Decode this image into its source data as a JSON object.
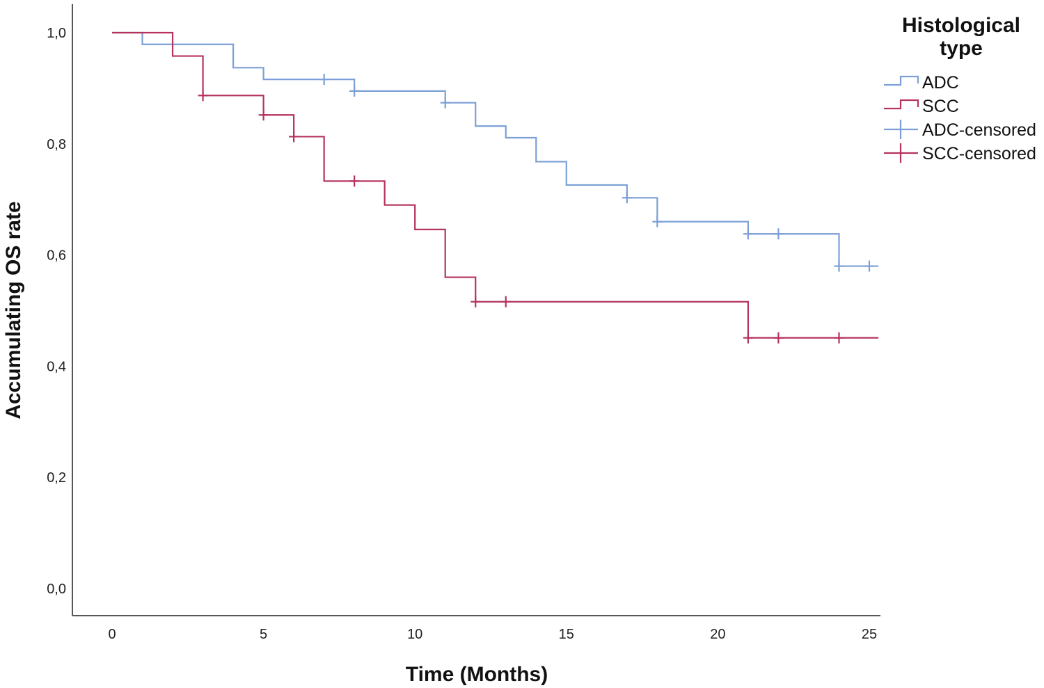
{
  "chart_data": {
    "type": "line",
    "subtype": "kaplan-meier step",
    "xlabel": "Time (Months)",
    "ylabel": "Accumulating OS rate",
    "xlim": [
      0,
      25
    ],
    "ylim": [
      0,
      1
    ],
    "x_ticks": [
      "0",
      "5",
      "10",
      "15",
      "20",
      "25"
    ],
    "y_ticks": [
      "0,0",
      "0,2",
      "0,4",
      "0,6",
      "0,8",
      "1,0"
    ],
    "grid": false,
    "legend": {
      "title_lines": [
        "Histological",
        "type"
      ],
      "placement": "top-right",
      "entries": [
        "ADC",
        "SCC",
        "ADC-censored",
        "SCC-censored"
      ]
    },
    "series": [
      {
        "name": "ADC",
        "color": "#7b9fd6",
        "x": [
          0,
          1,
          4,
          5,
          8,
          11,
          12,
          13,
          14,
          15,
          17,
          18,
          21,
          24,
          25.3
        ],
        "y": [
          1.0,
          0.979,
          0.937,
          0.916,
          0.895,
          0.874,
          0.832,
          0.811,
          0.768,
          0.726,
          0.703,
          0.66,
          0.638,
          0.58,
          0.58
        ],
        "censored": [
          {
            "x": 7,
            "y": 0.916
          },
          {
            "x": 8,
            "y": 0.895
          },
          {
            "x": 11,
            "y": 0.874
          },
          {
            "x": 17,
            "y": 0.703
          },
          {
            "x": 18,
            "y": 0.66
          },
          {
            "x": 21,
            "y": 0.638
          },
          {
            "x": 22,
            "y": 0.638
          },
          {
            "x": 24,
            "y": 0.58
          },
          {
            "x": 25,
            "y": 0.58
          }
        ]
      },
      {
        "name": "SCC",
        "color": "#b5335c",
        "x": [
          0,
          2,
          3,
          5,
          6,
          7,
          9,
          10,
          11,
          12,
          21,
          25.3
        ],
        "y": [
          1.0,
          0.958,
          0.887,
          0.852,
          0.813,
          0.733,
          0.69,
          0.646,
          0.56,
          0.516,
          0.451,
          0.451
        ],
        "censored": [
          {
            "x": 3,
            "y": 0.887
          },
          {
            "x": 5,
            "y": 0.852
          },
          {
            "x": 6,
            "y": 0.813
          },
          {
            "x": 8,
            "y": 0.733
          },
          {
            "x": 12,
            "y": 0.516
          },
          {
            "x": 13,
            "y": 0.516
          },
          {
            "x": 21,
            "y": 0.451
          },
          {
            "x": 22,
            "y": 0.451
          },
          {
            "x": 24,
            "y": 0.451
          }
        ]
      }
    ]
  }
}
